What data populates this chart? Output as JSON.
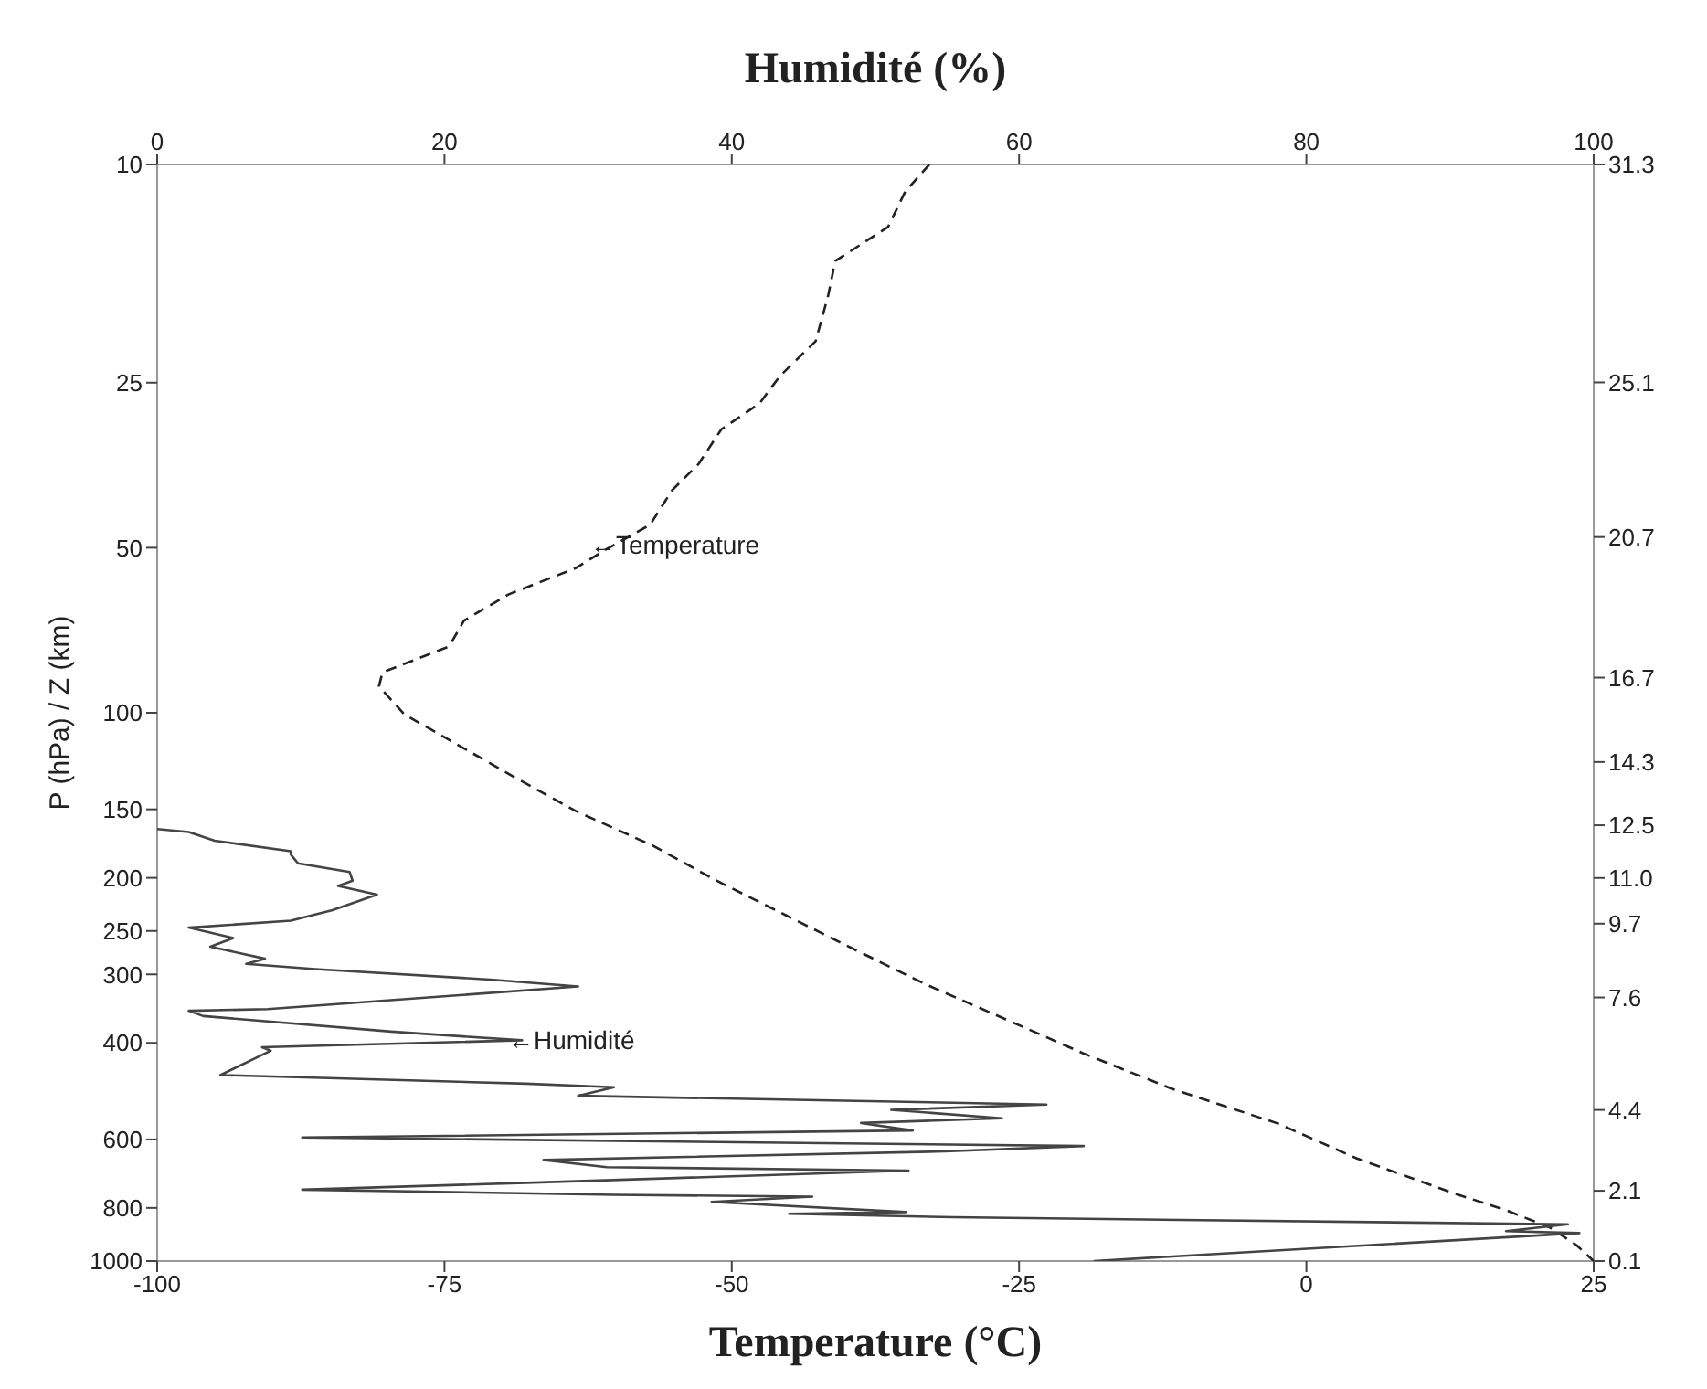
{
  "chart_data": {
    "type": "line",
    "xlabel": "Temperature (°C)",
    "x2label": "Humidité (%)",
    "ylabel": "P (hPa) / Z (km)",
    "xlim": [
      -100,
      25
    ],
    "xticks": [
      -100,
      -75,
      -50,
      -25,
      0,
      25
    ],
    "x2lim": [
      0,
      100
    ],
    "x2ticks": [
      0,
      20,
      40,
      60,
      80,
      100
    ],
    "ylim": [
      1000,
      10
    ],
    "yticks": [
      10,
      25,
      50,
      100,
      150,
      200,
      250,
      300,
      400,
      600,
      800,
      1000
    ],
    "y2lim": [
      0.1,
      31.3
    ],
    "y2ticks": [
      {
        "value": 31.3,
        "label": "31.3"
      },
      {
        "value": 25.1,
        "label": "25.1"
      },
      {
        "value": 20.7,
        "label": "20.7"
      },
      {
        "value": 16.7,
        "label": "16.7"
      },
      {
        "value": 14.3,
        "label": "14.3"
      },
      {
        "value": 12.5,
        "label": "12.5"
      },
      {
        "value": 11.0,
        "label": "11.0"
      },
      {
        "value": 9.7,
        "label": "9.7"
      },
      {
        "value": 7.6,
        "label": "7.6"
      },
      {
        "value": 4.4,
        "label": "4.4"
      },
      {
        "value": 2.1,
        "label": "2.1"
      },
      {
        "value": 0.1,
        "label": "0.1"
      }
    ],
    "log": true,
    "grid": false,
    "legend": false,
    "marker": "none",
    "series": [
      {
        "color": "#222222",
        "line_style": "dashed",
        "x": [
          -32.8,
          -34.9,
          -36.4,
          -41.0,
          -41.6,
          -42.7,
          -45.8,
          -47.6,
          -50.9,
          -52.9,
          -55.2,
          -57.1,
          -60.9,
          -63.6,
          -69.4,
          -73.3,
          -74.6,
          -80.4,
          -80.7,
          -78.5,
          -74.3,
          -69.0,
          -63.6,
          -56.8,
          -51.4,
          -45.3,
          -39.2,
          -33.1,
          -26.2,
          -19.3,
          -11.7,
          -2.5,
          4.4,
          12.8,
          17.4,
          21.2,
          23.5,
          25.0
        ],
        "values": [
          10,
          11.2,
          13.0,
          15.0,
          17.3,
          21.0,
          24.3,
          27.3,
          30.4,
          35.2,
          39.3,
          45.4,
          50.3,
          54.5,
          60.8,
          67.9,
          75.7,
          84.4,
          89.5,
          100.6,
          113,
          130.7,
          151,
          175,
          202,
          234,
          271,
          313,
          362,
          419,
          485,
          561,
          650,
          752,
          808,
          869,
          935,
          1000
        ]
      },
      {
        "color": "#444444",
        "line_style": "solid",
        "axis": "x2",
        "x": [
          0,
          2.2,
          4.0,
          9.3,
          9.3,
          9.8,
          13.4,
          13.6,
          12.6,
          15.3,
          12.2,
          9.3,
          2.2,
          5.3,
          3.7,
          7.5,
          6.2,
          11.0,
          23.2,
          29.3,
          7.7,
          2.2,
          3.2,
          16.3,
          25.4,
          7.3,
          7.9,
          4.4,
          25.7,
          31.8,
          29.3,
          55.4,
          61.9,
          51.1,
          58.8,
          49.0,
          52.6,
          10.1,
          64.5,
          54.8,
          26.9,
          31.3,
          52.3,
          25.7,
          10.1,
          31.8,
          45.6,
          38.6,
          52.1,
          44.0,
          55.4,
          98.2,
          93.9,
          99.0,
          65.2
        ],
        "values": [
          163,
          165,
          171.1,
          178.8,
          181.4,
          188.2,
          195.2,
          202.4,
          206.9,
          214.6,
          229.1,
          239.4,
          246.5,
          257.5,
          267.1,
          280.9,
          287.1,
          293.5,
          306.6,
          315.7,
          347.1,
          349.6,
          357.4,
          381.5,
          395.7,
          407.4,
          413.4,
          457.9,
          474.8,
          481.8,
          499.6,
          514.4,
          518.2,
          530,
          549,
          560,
          578,
          595,
          617,
          631,
          654,
          674,
          684,
          720,
          741,
          757,
          763,
          780,
          814,
          820,
          832,
          857,
          882,
          889,
          1000
        ]
      }
    ],
    "annotations": [
      "←Temperature",
      "←Humidité"
    ]
  }
}
